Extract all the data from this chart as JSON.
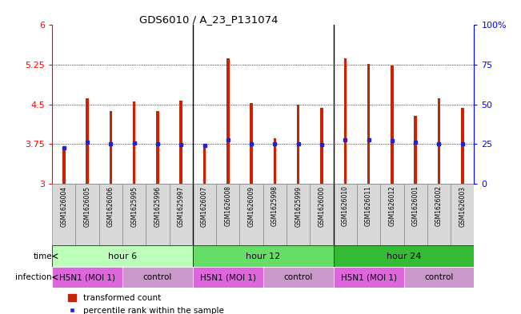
{
  "title": "GDS6010 / A_23_P131074",
  "samples": [
    "GSM1626004",
    "GSM1626005",
    "GSM1626006",
    "GSM1625995",
    "GSM1625996",
    "GSM1625997",
    "GSM1626007",
    "GSM1626008",
    "GSM1626009",
    "GSM1625998",
    "GSM1625999",
    "GSM1626000",
    "GSM1626010",
    "GSM1626011",
    "GSM1626012",
    "GSM1626001",
    "GSM1626002",
    "GSM1626003"
  ],
  "bar_values": [
    3.65,
    4.62,
    4.38,
    4.55,
    4.38,
    4.57,
    3.7,
    5.38,
    4.53,
    3.87,
    4.49,
    4.43,
    5.38,
    5.27,
    5.24,
    4.28,
    4.62,
    4.43
  ],
  "dot_values": [
    3.68,
    3.78,
    3.75,
    3.77,
    3.76,
    3.74,
    3.73,
    3.83,
    3.76,
    3.75,
    3.76,
    3.74,
    3.83,
    3.83,
    3.82,
    3.78,
    3.75,
    3.75
  ],
  "ylim": [
    3.0,
    6.0
  ],
  "yticks": [
    3.0,
    3.75,
    4.5,
    5.25,
    6.0
  ],
  "ytick_labels": [
    "3",
    "3.75",
    "4.5",
    "5.25",
    "6"
  ],
  "right_yticks_pct": [
    0,
    25,
    50,
    75,
    100
  ],
  "right_ytick_labels": [
    "0",
    "25",
    "50",
    "75",
    "100%"
  ],
  "bar_color": "#cc2200",
  "dot_color": "#2222cc",
  "time_groups": [
    {
      "label": "hour 6",
      "start": 0,
      "end": 6,
      "color": "#bbffbb"
    },
    {
      "label": "hour 12",
      "start": 6,
      "end": 12,
      "color": "#66dd66"
    },
    {
      "label": "hour 24",
      "start": 12,
      "end": 18,
      "color": "#33bb33"
    }
  ],
  "infection_groups": [
    {
      "label": "H5N1 (MOI 1)",
      "start": 0,
      "end": 3,
      "color": "#dd66dd"
    },
    {
      "label": "control",
      "start": 3,
      "end": 6,
      "color": "#cc99cc"
    },
    {
      "label": "H5N1 (MOI 1)",
      "start": 6,
      "end": 9,
      "color": "#dd66dd"
    },
    {
      "label": "control",
      "start": 9,
      "end": 12,
      "color": "#cc99cc"
    },
    {
      "label": "H5N1 (MOI 1)",
      "start": 12,
      "end": 15,
      "color": "#dd66dd"
    },
    {
      "label": "control",
      "start": 15,
      "end": 18,
      "color": "#cc99cc"
    }
  ],
  "time_label": "time",
  "infection_label": "infection",
  "legend_bar": "transformed count",
  "legend_dot": "percentile rank within the sample",
  "bar_width": 0.12,
  "label_cell_color": "#d8d8d8",
  "label_cell_border": "#888888",
  "group_sep_color": "#000000",
  "bg_color": "#ffffff"
}
